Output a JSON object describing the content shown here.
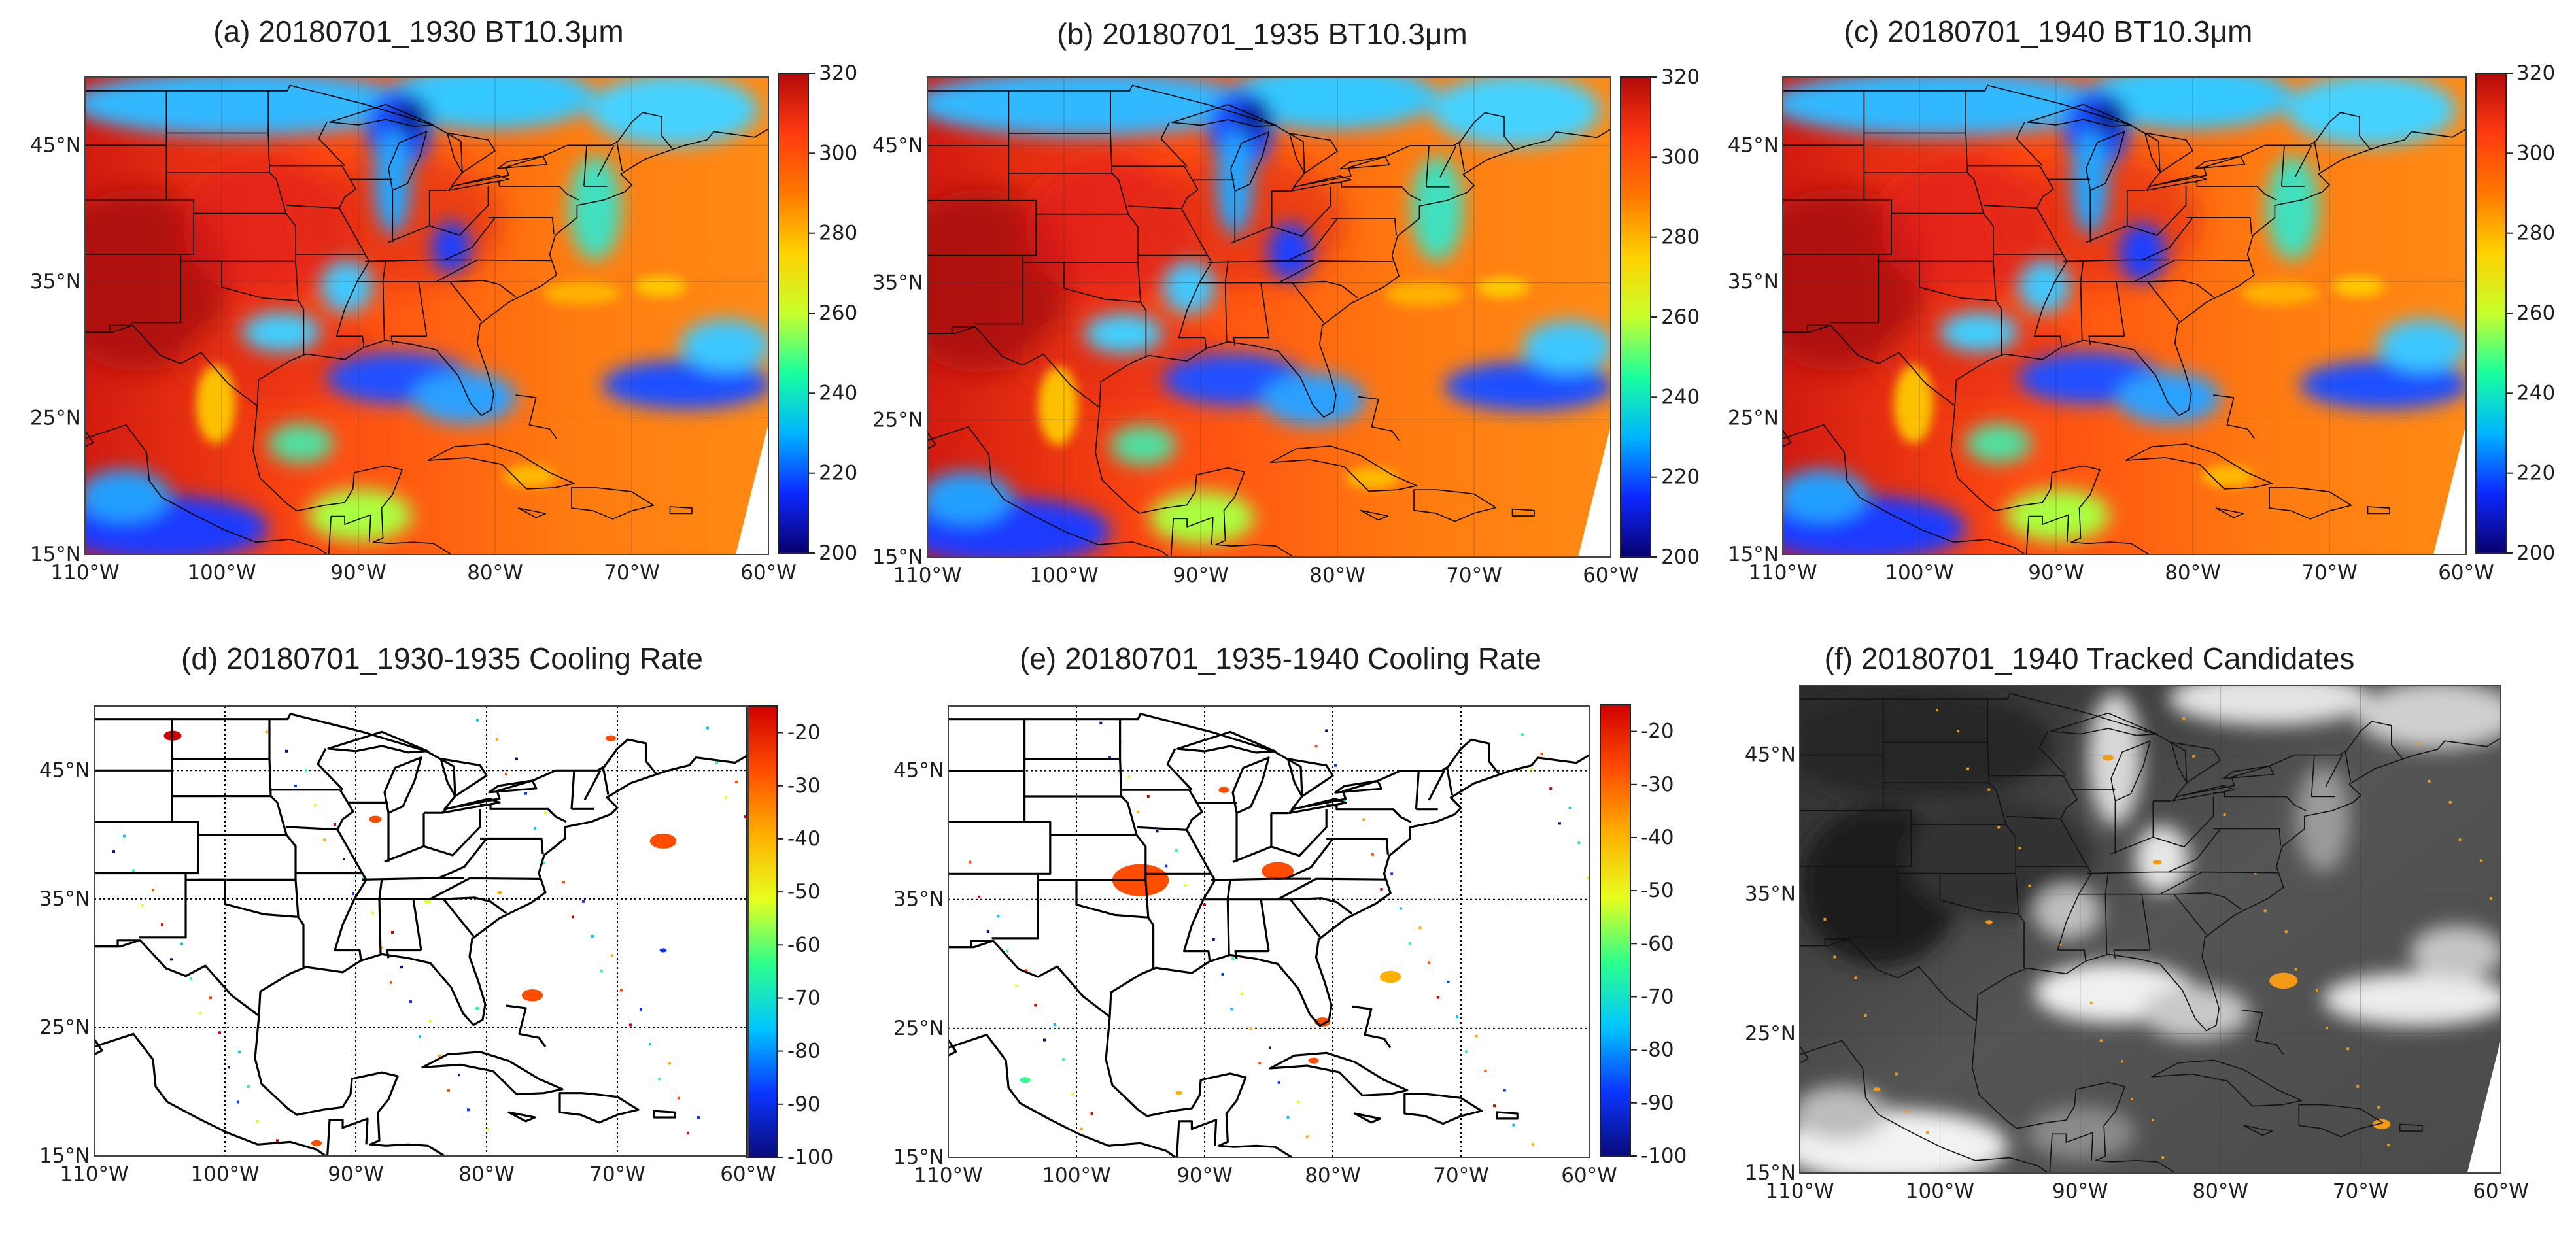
{
  "figure_title": "",
  "colors": {
    "cb_bt": [
      "#08006e",
      "#0d28ff",
      "#00b4ff",
      "#19ff9e",
      "#c8ff2b",
      "#ffd200",
      "#ff7800",
      "#ff3a10",
      "#b40a0a"
    ],
    "cb_cr": [
      "#0a0a7a",
      "#0b36ff",
      "#00c6ff",
      "#2dff8a",
      "#e6ff1f",
      "#ffb000",
      "#ff4d00",
      "#d00000"
    ]
  },
  "chart_data": [
    {
      "type": "heatmap",
      "id": "a",
      "title": "(a) 20180701_1930 BT10.3μm",
      "variable": "BT10.3μm",
      "xlim": [
        -110,
        -60
      ],
      "ylim": [
        15,
        50
      ],
      "xticks": [
        "110°W",
        "100°W",
        "90°W",
        "80°W",
        "70°W",
        "60°W"
      ],
      "yticks": [
        "45°N",
        "35°N",
        "25°N",
        "15°N"
      ],
      "colorbar": {
        "min": 200,
        "max": 320,
        "ticks": [
          "320",
          "300",
          "280",
          "260",
          "240",
          "220",
          "200"
        ]
      }
    },
    {
      "type": "heatmap",
      "id": "b",
      "title": "(b) 20180701_1935 BT10.3μm",
      "variable": "BT10.3μm",
      "xlim": [
        -110,
        -60
      ],
      "ylim": [
        15,
        50
      ],
      "xticks": [
        "110°W",
        "100°W",
        "90°W",
        "80°W",
        "70°W",
        "60°W"
      ],
      "yticks": [
        "45°N",
        "35°N",
        "25°N",
        "15°N"
      ],
      "colorbar": {
        "min": 200,
        "max": 320,
        "ticks": [
          "320",
          "300",
          "280",
          "260",
          "240",
          "220",
          "200"
        ]
      }
    },
    {
      "type": "heatmap",
      "id": "c",
      "title": "(c) 20180701_1940 BT10.3μm",
      "variable": "BT10.3μm",
      "xlim": [
        -110,
        -60
      ],
      "ylim": [
        15,
        50
      ],
      "xticks": [
        "110°W",
        "100°W",
        "90°W",
        "80°W",
        "70°W",
        "60°W"
      ],
      "yticks": [
        "45°N",
        "35°N",
        "25°N",
        "15°N"
      ],
      "colorbar": {
        "min": 200,
        "max": 320,
        "ticks": [
          "320",
          "300",
          "280",
          "260",
          "240",
          "220",
          "200"
        ]
      }
    },
    {
      "type": "scatter",
      "id": "d",
      "title": "(d) 20180701_1930-1935 Cooling Rate",
      "variable": "Cooling Rate",
      "xlim": [
        -110,
        -60
      ],
      "ylim": [
        15,
        50
      ],
      "xticks": [
        "110°W",
        "100°W",
        "90°W",
        "80°W",
        "70°W",
        "60°W"
      ],
      "yticks": [
        "45°N",
        "35°N",
        "25°N",
        "15°N"
      ],
      "colorbar": {
        "min": -100,
        "max": -15,
        "ticks": [
          "-20",
          "-30",
          "-40",
          "-50",
          "-60",
          "-70",
          "-80",
          "-90",
          "-100"
        ]
      },
      "features": [
        {
          "lon": -104,
          "lat": 47.7,
          "value": -20,
          "size": 1.0
        },
        {
          "lon": -88.5,
          "lat": 41.2,
          "value": -22,
          "size": 0.7
        },
        {
          "lon": -70.5,
          "lat": 47.5,
          "value": -22,
          "size": 0.6
        },
        {
          "lon": -66.5,
          "lat": 39.5,
          "value": -30,
          "size": 1.5
        },
        {
          "lon": -76.5,
          "lat": 27.5,
          "value": -30,
          "size": 1.2
        },
        {
          "lon": -93,
          "lat": 16,
          "value": -30,
          "size": 0.6
        },
        {
          "lon": -84.5,
          "lat": 34.8,
          "value": -55,
          "size": 0.4
        },
        {
          "lon": -66.5,
          "lat": 31,
          "value": -90,
          "size": 0.4
        },
        {
          "lon": -80.7,
          "lat": 26.5,
          "value": -65,
          "size": 0.3
        },
        {
          "lon": -79,
          "lat": 35.5,
          "value": -40,
          "size": 0.3
        }
      ]
    },
    {
      "type": "scatter",
      "id": "e",
      "title": "(e) 20180701_1935-1940 Cooling Rate",
      "variable": "Cooling Rate",
      "xlim": [
        -110,
        -60
      ],
      "ylim": [
        15,
        50
      ],
      "xticks": [
        "110°W",
        "100°W",
        "90°W",
        "80°W",
        "70°W",
        "60°W"
      ],
      "yticks": [
        "45°N",
        "35°N",
        "25°N",
        "15°N"
      ],
      "colorbar": {
        "min": -100,
        "max": -15,
        "ticks": [
          "-20",
          "-30",
          "-40",
          "-50",
          "-60",
          "-70",
          "-80",
          "-90",
          "-100"
        ]
      },
      "features": [
        {
          "lon": -95,
          "lat": 36.5,
          "value": -22,
          "size": 3.2
        },
        {
          "lon": -84.3,
          "lat": 37.2,
          "value": -24,
          "size": 1.8
        },
        {
          "lon": -88.5,
          "lat": 43.5,
          "value": -30,
          "size": 0.6
        },
        {
          "lon": -75.5,
          "lat": 29,
          "value": -35,
          "size": 1.2
        },
        {
          "lon": -80.8,
          "lat": 25.5,
          "value": -30,
          "size": 0.9
        },
        {
          "lon": -104,
          "lat": 21,
          "value": -60,
          "size": 0.6
        },
        {
          "lon": -81.5,
          "lat": 22.5,
          "value": -32,
          "size": 0.6
        },
        {
          "lon": -92,
          "lat": 20,
          "value": -40,
          "size": 0.4
        }
      ]
    },
    {
      "type": "scatter",
      "id": "f",
      "title": "(f) 20180701_1940 Tracked Candidates",
      "variable": "Tracked Candidates",
      "xlim": [
        -110,
        -60
      ],
      "ylim": [
        15,
        50
      ],
      "xticks": [
        "110°W",
        "100°W",
        "90°W",
        "80°W",
        "70°W",
        "60°W"
      ],
      "yticks": [
        "45°N",
        "35°N",
        "25°N",
        "15°N"
      ],
      "features": [
        {
          "lon": -75.5,
          "lat": 28.8,
          "size": 1.6
        },
        {
          "lon": -88,
          "lat": 44.8,
          "size": 0.6
        },
        {
          "lon": -84.5,
          "lat": 37.3,
          "size": 0.5
        },
        {
          "lon": -68.5,
          "lat": 18.5,
          "size": 1.0
        },
        {
          "lon": -104.5,
          "lat": 21,
          "size": 0.4
        },
        {
          "lon": -96.5,
          "lat": 33,
          "size": 0.4
        }
      ]
    }
  ]
}
